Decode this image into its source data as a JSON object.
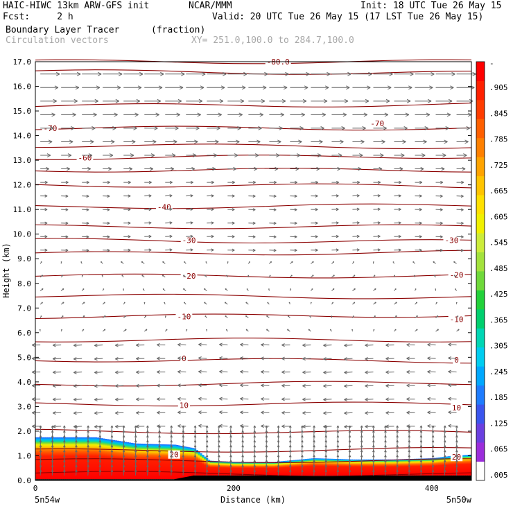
{
  "header": {
    "left_line1": "HAIC-HIWC 13km ARW-GFS init",
    "center_line1": "NCAR/MMM",
    "right_line1": "Init: 18 UTC Tue 26 May 15",
    "left_line2": "Fcst:     2 h",
    "right_line2": "Valid: 20 UTC Tue 26 May 15 (17 LST Tue 26 May 15)",
    "field_name": "Boundary Layer Tracer",
    "field_units": "(fraction)",
    "vector_label": "Circulation vectors",
    "xy_label": "XY= 251.0,100.0 to 284.7,100.0"
  },
  "chart_data": {
    "type": "heatmap",
    "title": "Boundary Layer Tracer (fraction)",
    "xlabel": "Distance (km)",
    "ylabel": "Height (km)",
    "xlim": [
      0,
      440
    ],
    "ylim": [
      0,
      17
    ],
    "x_ticks": [
      0,
      200,
      400
    ],
    "x_tick_labels": [
      "0",
      "200",
      "400"
    ],
    "y_ticks": [
      0,
      1,
      2,
      3,
      4,
      5,
      6,
      7,
      8,
      9,
      10,
      11,
      12,
      13,
      14,
      15,
      16,
      17
    ],
    "y_tick_labels": [
      "0.0",
      "1.0",
      "2.0",
      "3.0",
      "4.0",
      "5.0",
      "6.0",
      "7.0",
      "8.0",
      "9.0",
      "10.0",
      "11.0",
      "12.0",
      "13.0",
      "14.0",
      "15.0",
      "16.0",
      "17.0"
    ],
    "x_end_labels": [
      "5n54w",
      "5n50w"
    ],
    "terrain_height_km": [
      {
        "x": 0,
        "h": 0.05
      },
      {
        "x": 60,
        "h": 0.05
      },
      {
        "x": 140,
        "h": 0.05
      },
      {
        "x": 160,
        "h": 0.2
      },
      {
        "x": 180,
        "h": 0.2
      },
      {
        "x": 240,
        "h": 0.2
      },
      {
        "x": 300,
        "h": 0.2
      },
      {
        "x": 360,
        "h": 0.2
      },
      {
        "x": 420,
        "h": 0.2
      },
      {
        "x": 440,
        "h": 0.2
      }
    ],
    "tracer_top_km": [
      {
        "x": 0,
        "h": 1.75
      },
      {
        "x": 20,
        "h": 1.75
      },
      {
        "x": 60,
        "h": 1.75
      },
      {
        "x": 100,
        "h": 1.5
      },
      {
        "x": 140,
        "h": 1.45
      },
      {
        "x": 160,
        "h": 1.3
      },
      {
        "x": 175,
        "h": 0.8
      },
      {
        "x": 200,
        "h": 0.75
      },
      {
        "x": 240,
        "h": 0.75
      },
      {
        "x": 280,
        "h": 0.9
      },
      {
        "x": 320,
        "h": 0.85
      },
      {
        "x": 360,
        "h": 0.85
      },
      {
        "x": 400,
        "h": 0.9
      },
      {
        "x": 420,
        "h": 1.0
      },
      {
        "x": 440,
        "h": 1.05
      }
    ],
    "isotherm_labels": [
      {
        "text": "-80.0",
        "x": 245,
        "h": 17.0
      },
      {
        "text": "-70",
        "x": 15,
        "h": 14.3
      },
      {
        "text": "-70",
        "x": 345,
        "h": 14.5
      },
      {
        "text": "-60",
        "x": 50,
        "h": 13.1
      },
      {
        "text": "-40",
        "x": 130,
        "h": 11.1
      },
      {
        "text": "-30",
        "x": 155,
        "h": 9.75
      },
      {
        "text": "-30",
        "x": 420,
        "h": 9.75
      },
      {
        "text": "-20",
        "x": 155,
        "h": 8.3
      },
      {
        "text": "-20",
        "x": 425,
        "h": 8.35
      },
      {
        "text": "-10",
        "x": 150,
        "h": 6.65
      },
      {
        "text": "-10",
        "x": 425,
        "h": 6.55
      },
      {
        "text": "0",
        "x": 150,
        "h": 4.95
      },
      {
        "text": "0",
        "x": 425,
        "h": 4.9
      },
      {
        "text": "10",
        "x": 150,
        "h": 3.05
      },
      {
        "text": "10",
        "x": 425,
        "h": 2.95
      },
      {
        "text": "20",
        "x": 140,
        "h": 1.05
      },
      {
        "text": "20",
        "x": 425,
        "h": 0.95
      }
    ],
    "isotherm_heights_km": [
      0.3,
      0.8,
      1.2,
      2.0,
      3.1,
      3.9,
      4.9,
      5.7,
      6.65,
      7.5,
      8.3,
      9.2,
      9.75,
      10.3,
      11.1,
      12.0,
      12.6,
      13.1,
      13.6,
      14.3,
      15.2,
      16.6,
      17.0
    ],
    "colorbar": {
      "labels": [
        ".005",
        ".065",
        ".125",
        ".185",
        ".245",
        ".305",
        ".365",
        ".425",
        ".485",
        ".545",
        ".605",
        ".665",
        ".725",
        ".785",
        ".845",
        ".905"
      ],
      "top_label": "-",
      "colors": [
        "#ffffff",
        "#9b2ddb",
        "#6a3fe0",
        "#3a55ee",
        "#1e7cff",
        "#00a8ff",
        "#00cdf0",
        "#00d6b4",
        "#00cf6e",
        "#22d13a",
        "#6fd93a",
        "#a3e23c",
        "#ccec3a",
        "#f0f000",
        "#ffe000",
        "#ffc400",
        "#ffa300",
        "#ff8000",
        "#ff5f00",
        "#ff3c00",
        "#ff2000",
        "#ff0000"
      ]
    },
    "contour_color": "#8b0000",
    "vector_color": "#666666"
  }
}
